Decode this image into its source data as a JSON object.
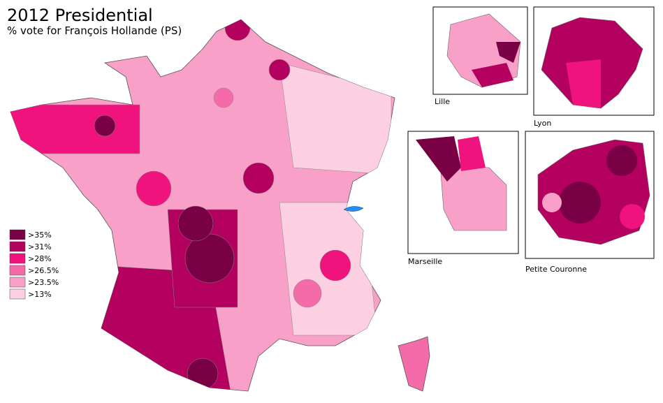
{
  "header": {
    "title": "2012 Presidential",
    "subtitle": "% vote for François Hollande (PS)"
  },
  "legend": [
    {
      "label": ">35%",
      "color": "#7a0045"
    },
    {
      "label": ">31%",
      "color": "#b4005e"
    },
    {
      "label": ">28%",
      "color": "#f0137e"
    },
    {
      "label": ">26.5%",
      "color": "#f56aa9"
    },
    {
      "label": ">23.5%",
      "color": "#f9a0c8"
    },
    {
      "label": ">13%",
      "color": "#fccfe2"
    }
  ],
  "insets": [
    "Lille",
    "Lyon",
    "Marseille",
    "Petite Couronne"
  ]
}
